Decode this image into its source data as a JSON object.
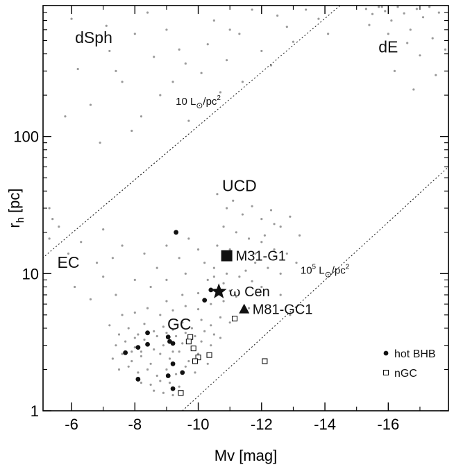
{
  "chart_data": {
    "type": "scatter",
    "xlabel": "Mv [mag]",
    "ylabel_main": "r",
    "ylabel_sub": "h",
    "ylabel_unit": " [pc]",
    "x_axis": {
      "range": [
        -5.1,
        -17.9
      ],
      "reversed": true,
      "ticks": [
        -6,
        -8,
        -10,
        -12,
        -14,
        -16
      ],
      "tick_labels": [
        "-6",
        "-8",
        "-10",
        "-12",
        "-14",
        "-16"
      ]
    },
    "y_axis": {
      "scale": "log",
      "range": [
        1,
        900
      ],
      "ticks": [
        1,
        10,
        100
      ],
      "tick_labels": [
        "1",
        "10",
        "100"
      ]
    },
    "region_labels": [
      {
        "text": "dSph",
        "x": -6.7,
        "y": 480
      },
      {
        "text": "dE",
        "x": -16.0,
        "y": 410
      },
      {
        "text": "UCD",
        "x": -11.3,
        "y": 40
      },
      {
        "text": "EC",
        "x": -5.9,
        "y": 11
      },
      {
        "text": "GC",
        "x": -9.4,
        "y": 3.9
      }
    ],
    "surface_brightness_lines": [
      {
        "label_main": "10 L",
        "label_sub": "⊙",
        "label_tail": "/pc",
        "label_sup": "2",
        "points": [
          [
            -5.0,
            12.5
          ],
          [
            -14.6,
            950
          ]
        ],
        "label_at": [
          -10.0,
          170
        ]
      },
      {
        "label_main": "10",
        "label_exp": "5",
        "label_mid": " L",
        "label_sub": "⊙",
        "label_tail": "/pc",
        "label_sup": "2",
        "points": [
          [
            -9.5,
            1.0
          ],
          [
            -17.9,
            60
          ]
        ],
        "label_at": [
          -14.0,
          10
        ]
      }
    ],
    "named_objects": [
      {
        "name": "M31-G1",
        "marker": "filled-square",
        "x": -10.9,
        "y": 13.5,
        "label": "M31-G1"
      },
      {
        "name": "omega-cen",
        "marker": "filled-star",
        "x": -10.65,
        "y": 7.4,
        "label_greek": "ω",
        "label": " Cen"
      },
      {
        "name": "M81-GC1",
        "marker": "filled-triangle",
        "x": -11.45,
        "y": 5.5,
        "label": "M81-GC1"
      }
    ],
    "series": [
      {
        "name": "hot BHB",
        "marker": "filled-circle",
        "points": [
          [
            -9.3,
            20
          ],
          [
            -10.4,
            7.6
          ],
          [
            -10.2,
            6.4
          ],
          [
            -7.7,
            2.65
          ],
          [
            -8.1,
            2.9
          ],
          [
            -8.4,
            3.7
          ],
          [
            -8.4,
            3.05
          ],
          [
            -9.05,
            3.45
          ],
          [
            -9.1,
            3.2
          ],
          [
            -9.2,
            3.1
          ],
          [
            -9.2,
            2.2
          ],
          [
            -8.1,
            1.7
          ],
          [
            -9.05,
            1.8
          ],
          [
            -9.5,
            1.9
          ],
          [
            -9.2,
            1.45
          ]
        ]
      },
      {
        "name": "nGC",
        "marker": "open-square",
        "points": [
          [
            -11.15,
            4.7
          ],
          [
            -9.75,
            3.45
          ],
          [
            -9.7,
            3.2
          ],
          [
            -9.85,
            2.85
          ],
          [
            -10.35,
            2.55
          ],
          [
            -10.0,
            2.45
          ],
          [
            -9.9,
            2.3
          ],
          [
            -12.1,
            2.3
          ],
          [
            -9.45,
            1.35
          ]
        ]
      },
      {
        "name": "background",
        "marker": "small-dot",
        "color": "#9a9a9a",
        "points": [
          [
            -5.3,
            30
          ],
          [
            -6.2,
            310
          ],
          [
            -6.6,
            170
          ],
          [
            -7.1,
            640
          ],
          [
            -7.4,
            300
          ],
          [
            -7.6,
            250
          ],
          [
            -8.0,
            560
          ],
          [
            -8.2,
            140
          ],
          [
            -8.6,
            380
          ],
          [
            -9.0,
            600
          ],
          [
            -9.2,
            250
          ],
          [
            -9.4,
            430
          ],
          [
            -9.6,
            340
          ],
          [
            -10.1,
            290
          ],
          [
            -10.5,
            700
          ],
          [
            -10.9,
            360
          ],
          [
            -11.3,
            560
          ],
          [
            -11.7,
            840
          ],
          [
            -12.0,
            420
          ],
          [
            -12.5,
            760
          ],
          [
            -13.0,
            490
          ],
          [
            -13.4,
            840
          ],
          [
            -5.8,
            140
          ],
          [
            -6.9,
            90
          ],
          [
            -7.9,
            110
          ],
          [
            -8.8,
            200
          ],
          [
            -9.7,
            130
          ],
          [
            -10.7,
            210
          ],
          [
            -11.4,
            250
          ],
          [
            -12.3,
            330
          ],
          [
            -8.4,
            800
          ],
          [
            -6.0,
            720
          ],
          [
            -7.2,
            420
          ],
          [
            -10.3,
            470
          ],
          [
            -11.0,
            600
          ],
          [
            -12.8,
            630
          ],
          [
            -13.8,
            720
          ],
          [
            -14.1,
            560
          ],
          [
            -15.3,
            850
          ],
          [
            -15.5,
            780
          ],
          [
            -15.7,
            880
          ],
          [
            -15.9,
            820
          ],
          [
            -16.1,
            700
          ],
          [
            -16.3,
            880
          ],
          [
            -16.5,
            790
          ],
          [
            -16.7,
            600
          ],
          [
            -16.9,
            850
          ],
          [
            -17.1,
            740
          ],
          [
            -17.3,
            880
          ],
          [
            -17.6,
            800
          ],
          [
            -15.4,
            650
          ],
          [
            -16.0,
            560
          ],
          [
            -16.6,
            480
          ],
          [
            -17.0,
            390
          ],
          [
            -17.4,
            520
          ],
          [
            -17.8,
            430
          ],
          [
            -16.2,
            300
          ],
          [
            -16.8,
            220
          ],
          [
            -17.5,
            280
          ],
          [
            -15.8,
            880
          ],
          [
            -5.4,
            25
          ],
          [
            -5.6,
            22
          ],
          [
            -5.3,
            18
          ],
          [
            -5.9,
            14
          ],
          [
            -6.3,
            17
          ],
          [
            -6.8,
            12
          ],
          [
            -7.0,
            21
          ],
          [
            -7.3,
            13
          ],
          [
            -7.6,
            16
          ],
          [
            -8.0,
            9
          ],
          [
            -8.3,
            14
          ],
          [
            -8.7,
            11
          ],
          [
            -9.0,
            16
          ],
          [
            -9.4,
            13
          ],
          [
            -9.7,
            18
          ],
          [
            -10.0,
            15
          ],
          [
            -6.1,
            8
          ],
          [
            -6.6,
            6.5
          ],
          [
            -7.0,
            9.5
          ],
          [
            -7.4,
            7
          ],
          [
            -10.6,
            38
          ],
          [
            -10.9,
            30
          ],
          [
            -11.1,
            34
          ],
          [
            -11.4,
            27
          ],
          [
            -11.7,
            31
          ],
          [
            -12.0,
            25
          ],
          [
            -12.3,
            29
          ],
          [
            -12.6,
            22
          ],
          [
            -12.9,
            26
          ],
          [
            -13.2,
            19
          ],
          [
            -10.8,
            22
          ],
          [
            -11.2,
            20
          ],
          [
            -11.6,
            18
          ],
          [
            -12.0,
            17
          ],
          [
            -12.4,
            15
          ],
          [
            -12.8,
            14
          ],
          [
            -13.1,
            12
          ],
          [
            -10.6,
            16
          ],
          [
            -11.0,
            15
          ],
          [
            -11.4,
            13
          ],
          [
            -11.8,
            12
          ],
          [
            -12.2,
            11
          ],
          [
            -12.6,
            10
          ],
          [
            -10.5,
            11
          ],
          [
            -10.9,
            10
          ],
          [
            -11.3,
            9.5
          ],
          [
            -11.7,
            8.8
          ],
          [
            -12.0,
            8
          ],
          [
            -10.3,
            9
          ],
          [
            -10.8,
            8.5
          ],
          [
            -7.2,
            4.2
          ],
          [
            -7.5,
            3.6
          ],
          [
            -7.8,
            4.0
          ],
          [
            -8.0,
            3.4
          ],
          [
            -8.3,
            4.3
          ],
          [
            -8.6,
            3.8
          ],
          [
            -8.9,
            4.1
          ],
          [
            -9.2,
            3.9
          ],
          [
            -9.5,
            4.4
          ],
          [
            -9.8,
            4.0
          ],
          [
            -10.1,
            4.6
          ],
          [
            -10.4,
            4.2
          ],
          [
            -10.7,
            4.8
          ],
          [
            -11.0,
            4.4
          ],
          [
            -7.4,
            3.0
          ],
          [
            -7.7,
            3.2
          ],
          [
            -8.0,
            2.9
          ],
          [
            -8.3,
            3.3
          ],
          [
            -8.6,
            2.8
          ],
          [
            -8.9,
            3.0
          ],
          [
            -9.2,
            2.7
          ],
          [
            -9.5,
            3.1
          ],
          [
            -9.8,
            2.9
          ],
          [
            -10.1,
            3.2
          ],
          [
            -10.4,
            3.0
          ],
          [
            -10.7,
            3.4
          ],
          [
            -7.3,
            2.4
          ],
          [
            -7.6,
            2.6
          ],
          [
            -7.9,
            2.3
          ],
          [
            -8.2,
            2.5
          ],
          [
            -8.5,
            2.2
          ],
          [
            -8.8,
            2.6
          ],
          [
            -9.1,
            2.4
          ],
          [
            -9.4,
            2.7
          ],
          [
            -9.7,
            2.3
          ],
          [
            -10.0,
            2.6
          ],
          [
            -10.3,
            2.2
          ],
          [
            -7.5,
            2.0
          ],
          [
            -7.8,
            2.1
          ],
          [
            -8.1,
            1.9
          ],
          [
            -8.4,
            2.0
          ],
          [
            -8.7,
            1.8
          ],
          [
            -9.0,
            2.0
          ],
          [
            -9.3,
            1.85
          ],
          [
            -9.6,
            2.1
          ],
          [
            -9.9,
            1.9
          ],
          [
            -8.2,
            1.6
          ],
          [
            -8.5,
            1.55
          ],
          [
            -8.8,
            1.65
          ],
          [
            -9.1,
            1.6
          ],
          [
            -9.4,
            1.5
          ],
          [
            -8.6,
            1.4
          ],
          [
            -8.9,
            1.35
          ],
          [
            -9.2,
            1.3
          ],
          [
            -8.0,
            5.2
          ],
          [
            -8.4,
            5.6
          ],
          [
            -8.8,
            5.0
          ],
          [
            -9.2,
            5.4
          ],
          [
            -9.6,
            5.8
          ],
          [
            -10.0,
            5.5
          ],
          [
            -10.4,
            6.0
          ],
          [
            -10.8,
            6.3
          ],
          [
            -11.2,
            6.8
          ],
          [
            -7.6,
            5.0
          ],
          [
            -9.0,
            6.3
          ],
          [
            -9.5,
            7.0
          ],
          [
            -10.0,
            7.2
          ],
          [
            -10.5,
            9.5
          ],
          [
            -11.0,
            7.5
          ],
          [
            -11.5,
            10.5
          ],
          [
            -11.8,
            14
          ],
          [
            -12.1,
            19
          ],
          [
            -12.4,
            23
          ],
          [
            -10.2,
            12
          ],
          [
            -9.6,
            10
          ],
          [
            -9.0,
            9.0
          ],
          [
            -8.5,
            8.0
          ],
          [
            -12.6,
            7.0
          ],
          [
            -12.9,
            5.0
          ],
          [
            -11.6,
            5.6
          ],
          [
            -8.2,
            2.7
          ],
          [
            -8.7,
            3.5
          ],
          [
            -9.0,
            3.7
          ],
          [
            -9.3,
            3.5
          ],
          [
            -9.6,
            3.7
          ],
          [
            -9.9,
            3.5
          ],
          [
            -10.2,
            3.8
          ],
          [
            -10.5,
            3.6
          ],
          [
            -8.1,
            3.6
          ],
          [
            -7.9,
            2.7
          ]
        ]
      }
    ],
    "legend": {
      "position": "bottom-right",
      "entries": [
        {
          "marker": "filled-circle",
          "label": "hot BHB"
        },
        {
          "marker": "open-square",
          "label": "nGC"
        }
      ]
    },
    "grid": false
  }
}
